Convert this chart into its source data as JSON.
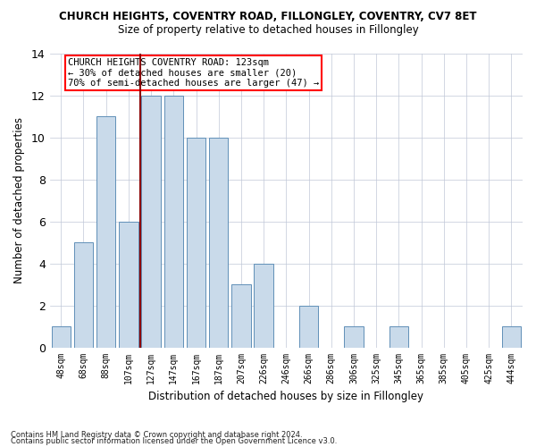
{
  "title": "CHURCH HEIGHTS, COVENTRY ROAD, FILLONGLEY, COVENTRY, CV7 8ET",
  "subtitle": "Size of property relative to detached houses in Fillongley",
  "xlabel": "Distribution of detached houses by size in Fillongley",
  "ylabel": "Number of detached properties",
  "categories": [
    "48sqm",
    "68sqm",
    "88sqm",
    "107sqm",
    "127sqm",
    "147sqm",
    "167sqm",
    "187sqm",
    "207sqm",
    "226sqm",
    "246sqm",
    "266sqm",
    "286sqm",
    "306sqm",
    "325sqm",
    "345sqm",
    "365sqm",
    "385sqm",
    "405sqm",
    "425sqm",
    "444sqm"
  ],
  "values": [
    1,
    5,
    11,
    6,
    12,
    12,
    10,
    10,
    3,
    4,
    0,
    2,
    0,
    1,
    0,
    1,
    0,
    0,
    0,
    0,
    1
  ],
  "bar_color": "#c9daea",
  "bar_edge_color": "#6090b8",
  "vline_color": "#8b0000",
  "vline_xindex": 3.5,
  "annotation_lines": [
    "CHURCH HEIGHTS COVENTRY ROAD: 123sqm",
    "← 30% of detached houses are smaller (20)",
    "70% of semi-detached houses are larger (47) →"
  ],
  "ylim": [
    0,
    14
  ],
  "yticks": [
    0,
    2,
    4,
    6,
    8,
    10,
    12,
    14
  ],
  "footnote_line1": "Contains HM Land Registry data © Crown copyright and database right 2024.",
  "footnote_line2": "Contains public sector information licensed under the Open Government Licence v3.0.",
  "background_color": "#ffffff",
  "grid_color": "#c0c8d8"
}
